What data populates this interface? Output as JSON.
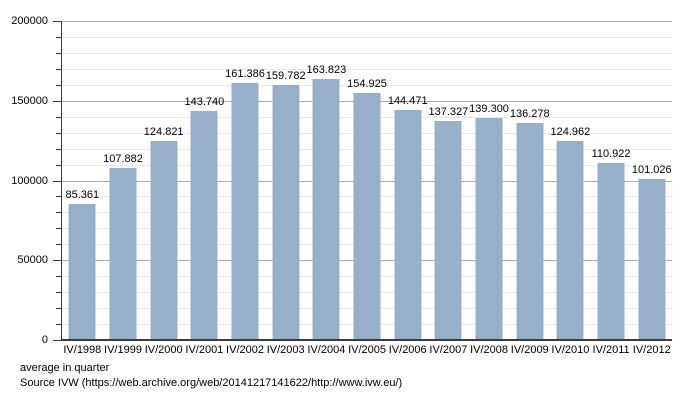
{
  "chart_data": {
    "type": "bar",
    "title": "",
    "xlabel": "",
    "ylabel": "",
    "categories": [
      "IV/1998",
      "IV/1999",
      "IV/2000",
      "IV/2001",
      "IV/2002",
      "IV/2003",
      "IV/2004",
      "IV/2005",
      "IV/2006",
      "IV/2007",
      "IV/2008",
      "IV/2009",
      "IV/2010",
      "IV/2011",
      "IV/2012"
    ],
    "values": [
      85361,
      107882,
      124821,
      143740,
      161386,
      159782,
      163823,
      154925,
      144471,
      137327,
      139300,
      136278,
      124962,
      110922,
      101026
    ],
    "value_labels": [
      "85.361",
      "107.882",
      "124.821",
      "143.740",
      "161.386",
      "159.782",
      "163.823",
      "154.925",
      "144.471",
      "137.327",
      "139.300",
      "136.278",
      "124.962",
      "110.922",
      "101.026"
    ],
    "y_tick_labels": [
      "0",
      "50000",
      "100000",
      "150000",
      "200000"
    ],
    "ylim": [
      0,
      200000
    ],
    "major_grid_step": 50000,
    "minor_grid_step": 10000,
    "grid": true,
    "legend": "none",
    "bar_color": "#97afc9"
  },
  "footer": {
    "caption": "average in quarter",
    "source": "Source IVW (https://web.archive.org/web/20141217141622/http://www.ivw.eu/)"
  }
}
